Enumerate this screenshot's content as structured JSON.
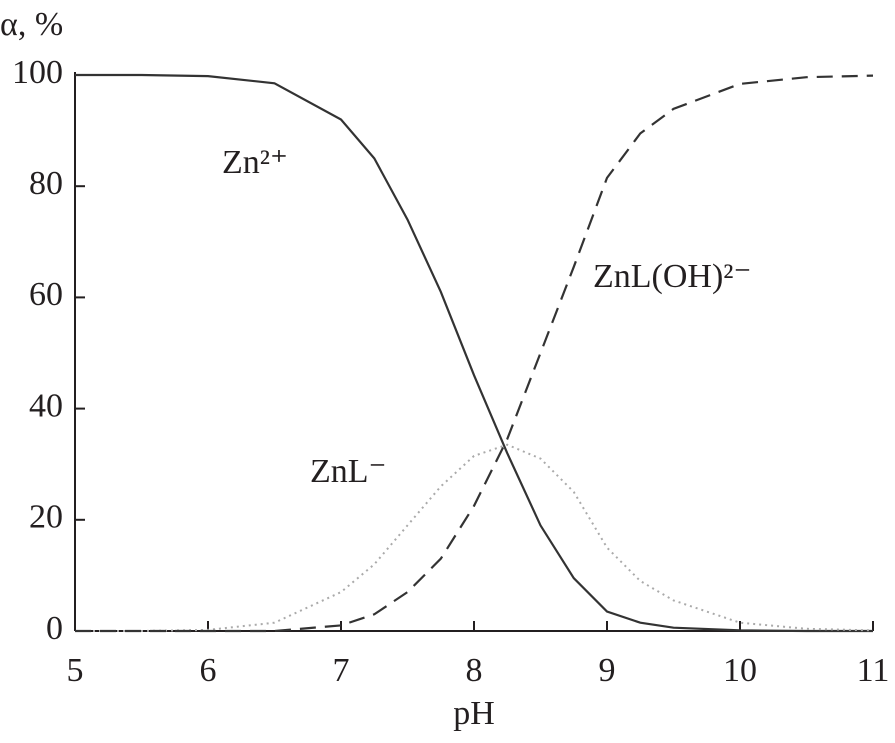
{
  "chart_data": {
    "type": "line",
    "x_label": "pH",
    "y_label": "α, %",
    "x": [
      5,
      5.5,
      6,
      6.5,
      7,
      7.25,
      7.5,
      7.75,
      8,
      8.25,
      8.5,
      8.75,
      9,
      9.25,
      9.5,
      10,
      10.5,
      11
    ],
    "series": [
      {
        "name": "Zn²⁺",
        "color": "#333333",
        "style": "solid",
        "values": [
          100,
          100,
          99.8,
          98.5,
          92,
          85,
          74,
          61,
          46,
          32,
          19,
          9.5,
          3.5,
          1.5,
          0.6,
          0.1,
          0,
          0
        ]
      },
      {
        "name": "ZnL⁻",
        "color": "#aaaaaa",
        "style": "dotted",
        "values": [
          0,
          0,
          0.2,
          1.5,
          7,
          12,
          19,
          26,
          31.5,
          33.5,
          31,
          25,
          15,
          9,
          5.5,
          1.5,
          0.4,
          0.1
        ]
      },
      {
        "name": "ZnL(OH)²⁻",
        "color": "#333333",
        "style": "dashed",
        "values": [
          0,
          0,
          0,
          0,
          1,
          3,
          7,
          13,
          22.5,
          34.5,
          50,
          65.5,
          81.5,
          89.5,
          93.9,
          98.4,
          99.6,
          99.9
        ]
      }
    ],
    "xlim": [
      5,
      11
    ],
    "ylim": [
      0,
      100
    ],
    "xticks": [
      5,
      6,
      7,
      8,
      9,
      10,
      11
    ],
    "yticks": [
      0,
      20,
      40,
      60,
      80,
      100
    ]
  }
}
